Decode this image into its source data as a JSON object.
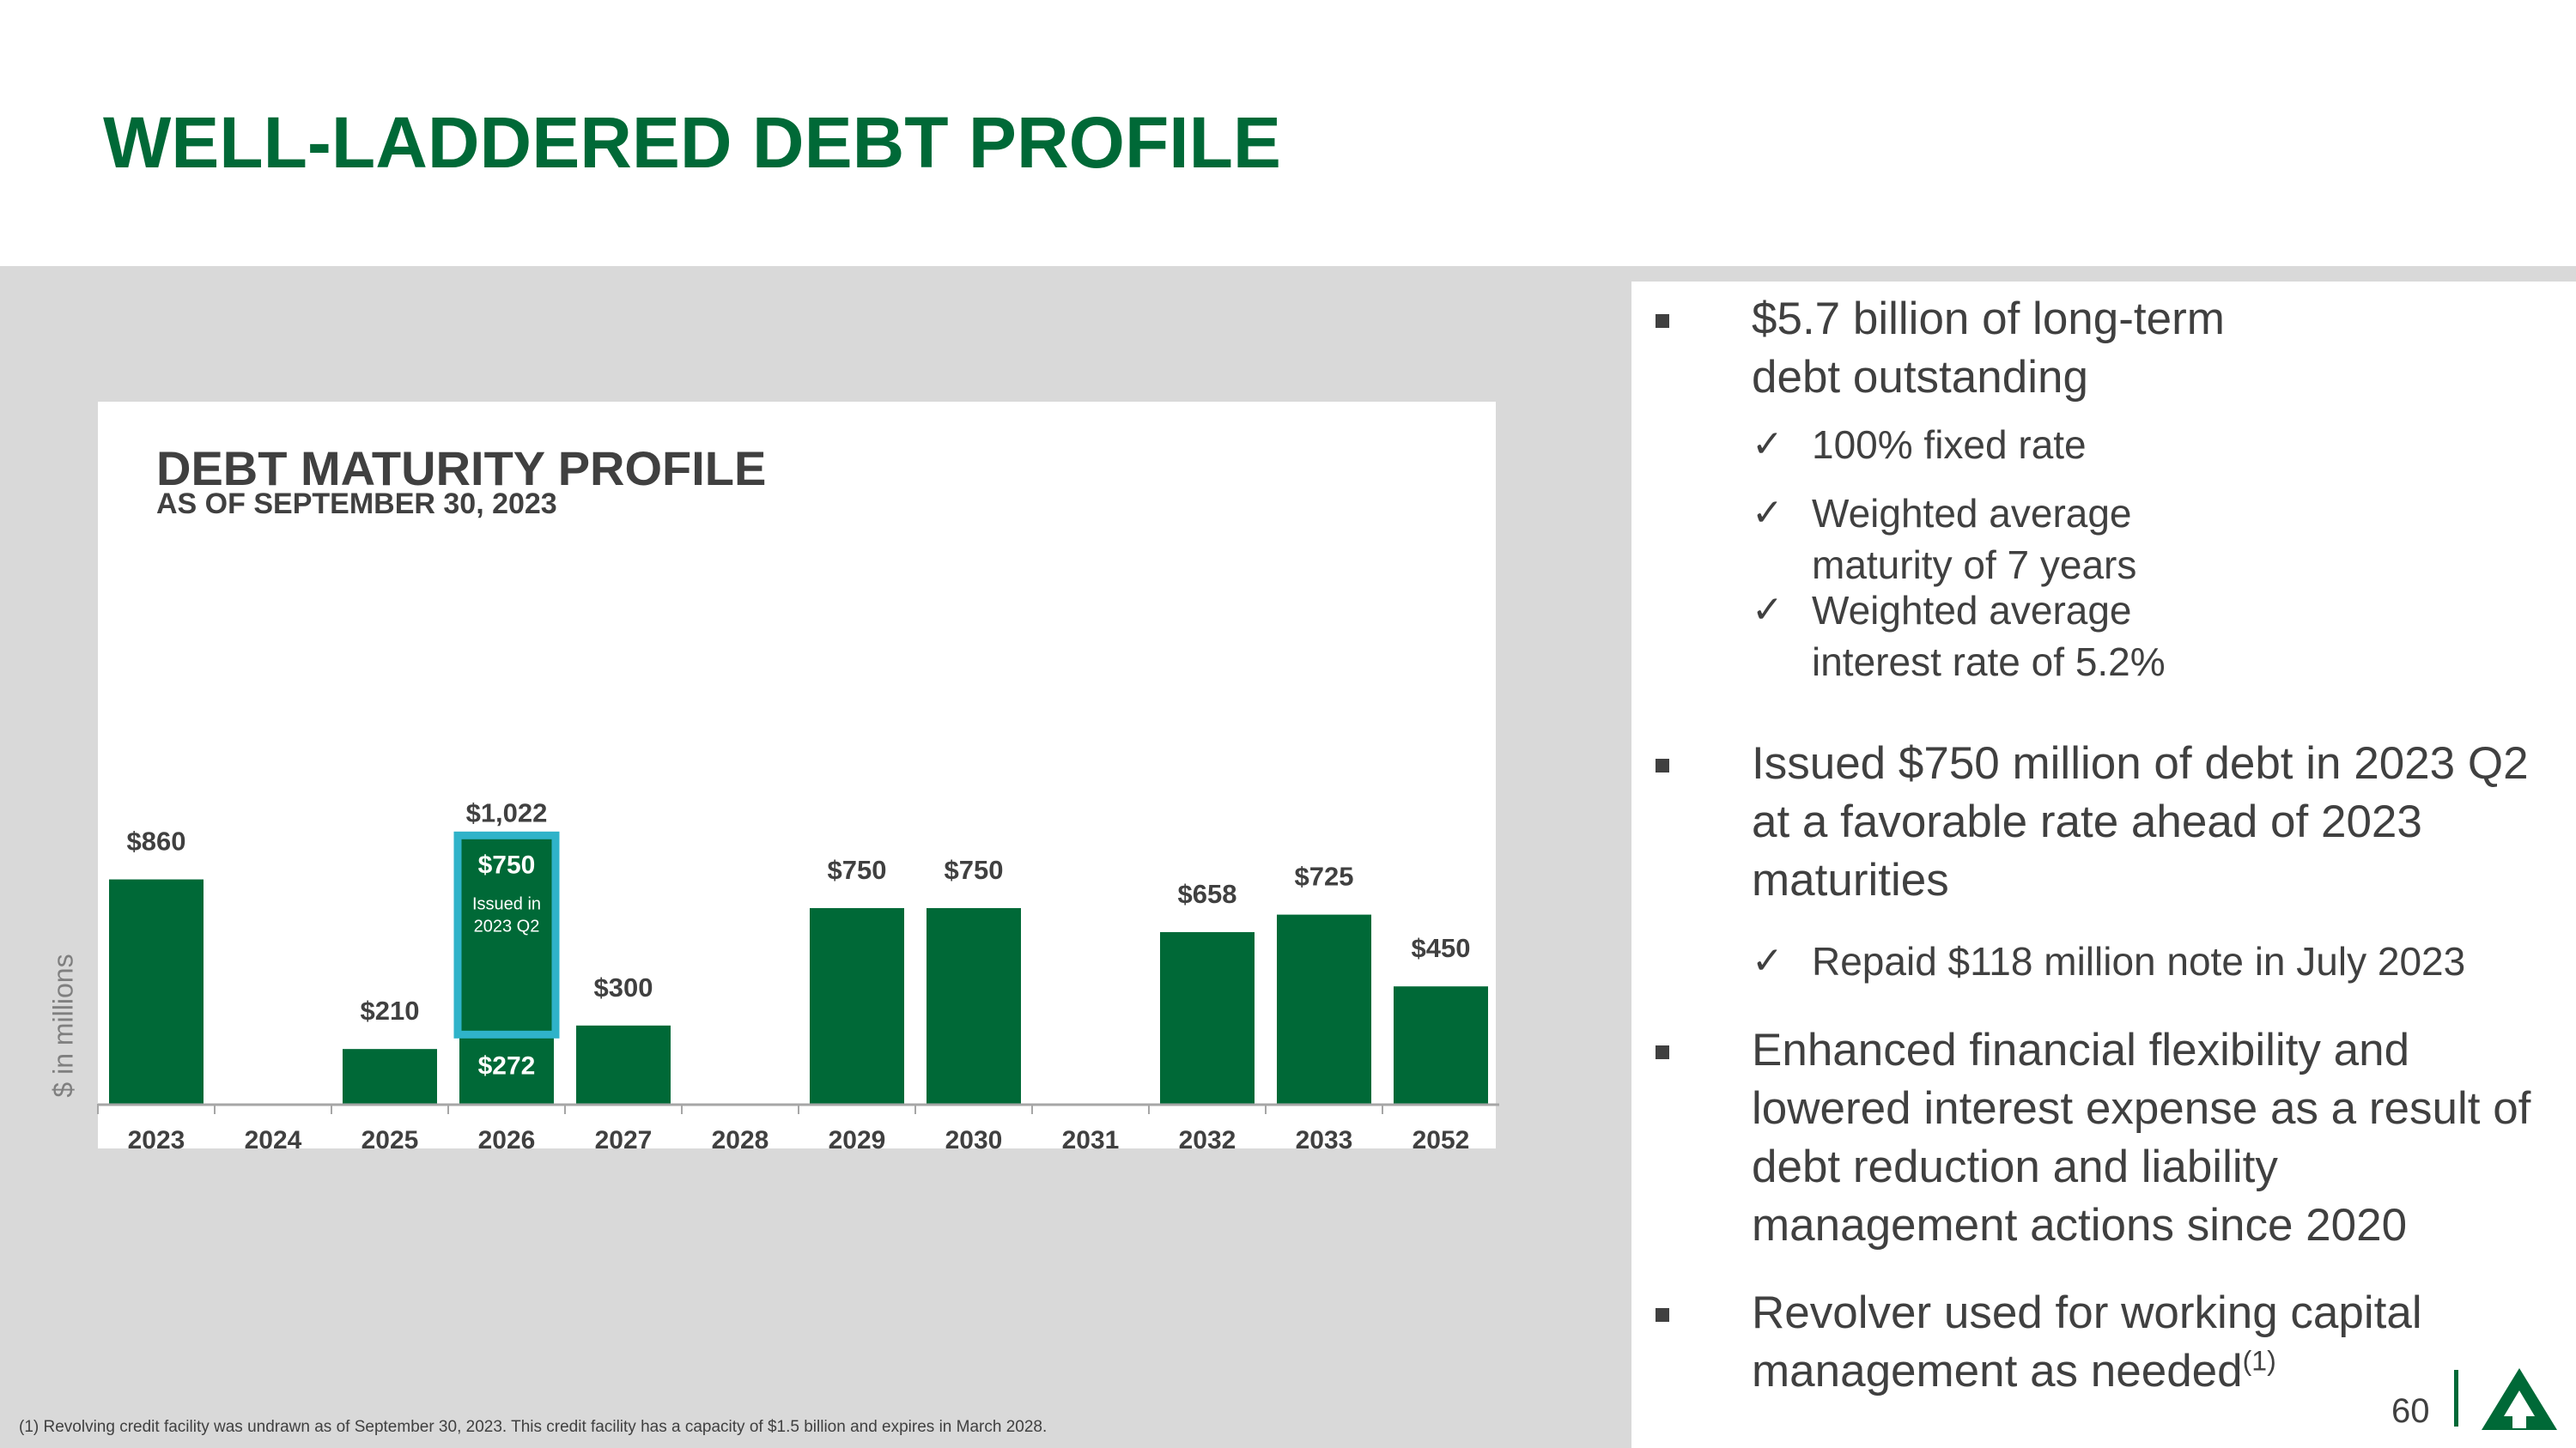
{
  "slide": {
    "title": "WELL-LADDERED DEBT PROFILE",
    "page_number": "60",
    "footnote": "(1) Revolving credit facility was undrawn as of September 30, 2023. This credit facility has a capacity of $1.5 billion and expires in March 2028."
  },
  "colors": {
    "brand_green": "#006937",
    "highlight_outline": "#2fb3c9",
    "panel_gray": "#d9d9d9",
    "text_gray": "#404040"
  },
  "chart_data": {
    "type": "bar",
    "title": "DEBT MATURITY PROFILE",
    "subtitle": "AS OF SEPTEMBER 30, 2023",
    "ylabel": "$ in millions",
    "ylim": [
      0,
      1200
    ],
    "categories": [
      "2023",
      "2024",
      "2025",
      "2026",
      "2027",
      "2028",
      "2029",
      "2030",
      "2031",
      "2032",
      "2033",
      "2052"
    ],
    "values": [
      860,
      0,
      210,
      1022,
      300,
      0,
      750,
      750,
      0,
      658,
      725,
      450
    ],
    "value_labels": [
      "$860",
      "",
      "$210",
      "$1,022",
      "$300",
      "",
      "$750",
      "$750",
      "",
      "$658",
      "$725",
      "$450"
    ],
    "stacked_2026": {
      "category": "2026",
      "segments": [
        {
          "value": 272,
          "label": "$272"
        },
        {
          "value": 750,
          "label": "$750",
          "note": "Issued in 2023 Q2",
          "highlighted": true
        }
      ]
    }
  },
  "bullets": [
    {
      "text": "$5.7 billion of long-term debt outstanding",
      "sub": [
        "100% fixed rate",
        "Weighted average maturity of 7 years",
        "Weighted average interest rate of 5.2%"
      ]
    },
    {
      "text": "Issued $750 million of debt in 2023 Q2 at a favorable rate ahead of 2023 maturities",
      "sub": [
        "Repaid $118 million note in July 2023"
      ]
    },
    {
      "text": "Enhanced financial flexibility and lowered interest expense as a result of debt reduction and liability management actions since 2020",
      "sub": []
    },
    {
      "text": "Revolver used for working capital management as needed",
      "superscript": "(1)",
      "sub": []
    }
  ],
  "check_glyph": "✓",
  "logo_icon": "tree-triangle-logo-icon"
}
